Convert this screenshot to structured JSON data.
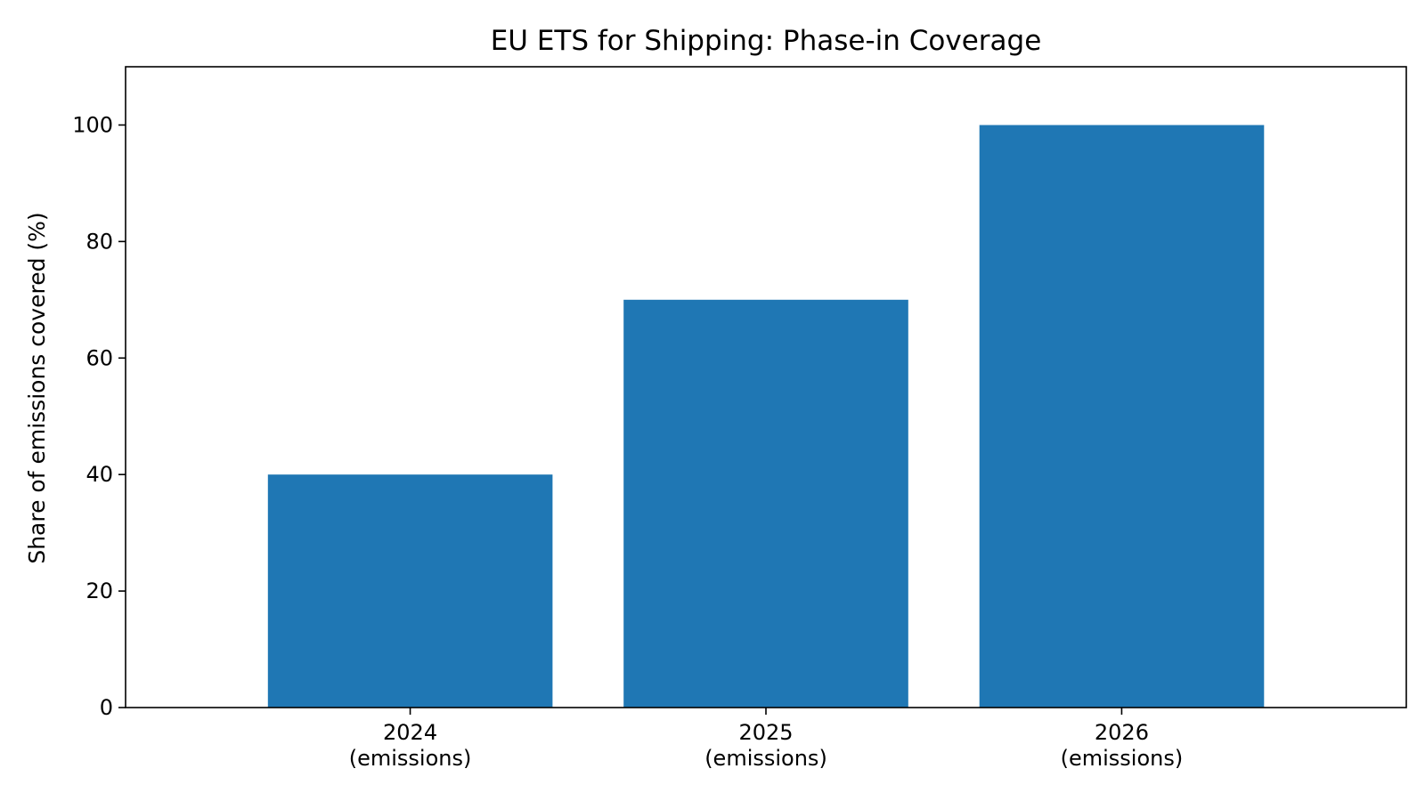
{
  "chart_data": {
    "type": "bar",
    "title": "EU ETS for Shipping: Phase-in Coverage",
    "xlabel": "",
    "ylabel": "Share of emissions covered (%)",
    "categories": [
      [
        "2024",
        "(emissions)"
      ],
      [
        "2025",
        "(emissions)"
      ],
      [
        "2026",
        "(emissions)"
      ]
    ],
    "values": [
      40,
      70,
      100
    ],
    "ylim": [
      0,
      110
    ],
    "yticks": [
      0,
      20,
      40,
      60,
      80,
      100
    ],
    "grid": false,
    "legend": "none",
    "bar_color": "#1f77b4"
  }
}
